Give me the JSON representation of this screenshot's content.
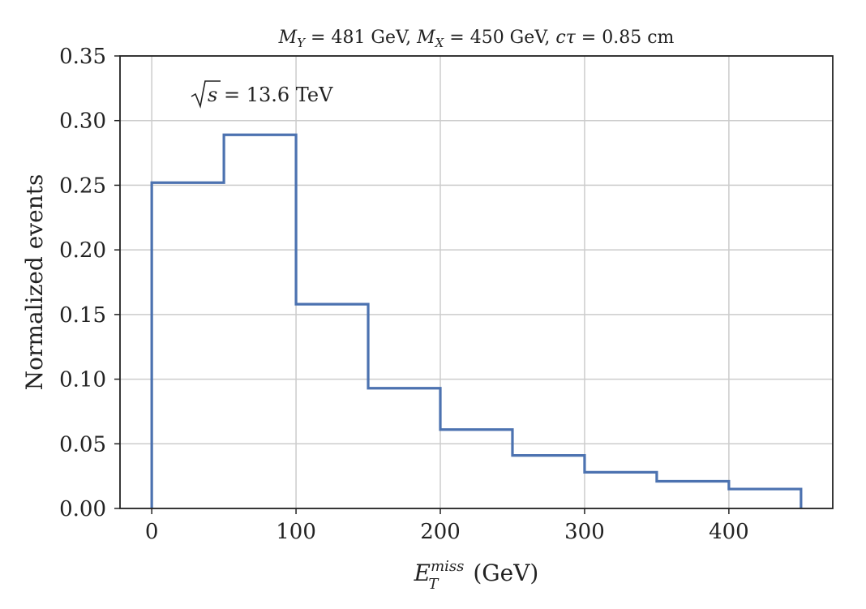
{
  "chart_data": {
    "type": "histogram-step",
    "title": "M_Y = 481 GeV, M_X = 450 GeV, cτ = 0.85 cm",
    "title_parts": {
      "my_label": "M",
      "my_sub": "Y",
      "my_value": " = 481 GeV, ",
      "mx_label": "M",
      "mx_sub": "X",
      "mx_value": " = 450 GeV, ",
      "ctau_label": "cτ",
      "ctau_value": " = 0.85 cm"
    },
    "annotation": {
      "sqrt_s_label": "s",
      "sqrt_s_value": " = 13.6 TeV"
    },
    "xlabel": {
      "symbol": "E",
      "sub": "T",
      "sup": "miss",
      "unit": " (GeV)"
    },
    "ylabel": "Normalized events",
    "xlim": [
      -22,
      472
    ],
    "ylim": [
      0.0,
      0.35
    ],
    "xticks": [
      0,
      100,
      200,
      300,
      400
    ],
    "xtick_labels": [
      "0",
      "100",
      "200",
      "300",
      "400"
    ],
    "yticks": [
      0.0,
      0.05,
      0.1,
      0.15,
      0.2,
      0.25,
      0.3,
      0.35
    ],
    "ytick_labels": [
      "0.00",
      "0.05",
      "0.10",
      "0.15",
      "0.20",
      "0.25",
      "0.30",
      "0.35"
    ],
    "grid": true,
    "bin_edges": [
      0,
      50,
      100,
      150,
      200,
      250,
      300,
      350,
      400,
      450
    ],
    "values": [
      0.252,
      0.289,
      0.158,
      0.093,
      0.061,
      0.041,
      0.028,
      0.021,
      0.015
    ],
    "color": "#4c72b0"
  }
}
